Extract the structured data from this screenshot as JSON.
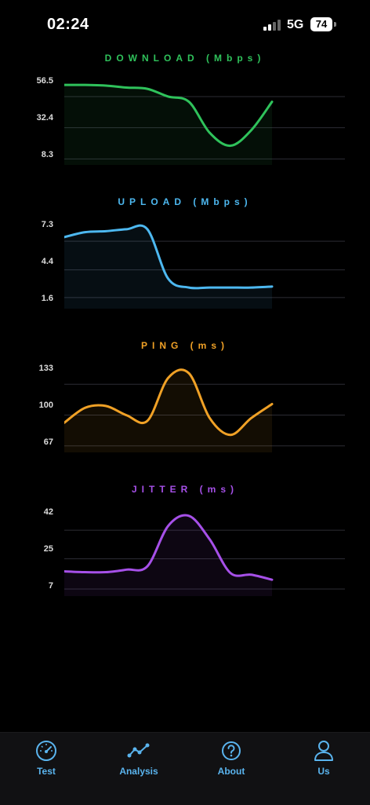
{
  "status": {
    "time": "02:24",
    "network": "5G",
    "battery": "74"
  },
  "charts": [
    {
      "title": "DOWNLOAD (Mbps)",
      "color": "#2fc25b",
      "ticks": [
        "56.5",
        "32.4",
        "8.3"
      ]
    },
    {
      "title": "UPLOAD (Mbps)",
      "color": "#4db8f0",
      "ticks": [
        "7.3",
        "4.4",
        "1.6"
      ]
    },
    {
      "title": "PING (ms)",
      "color": "#f0a126",
      "ticks": [
        "133",
        "100",
        "67"
      ]
    },
    {
      "title": "JITTER (ms)",
      "color": "#a650e8",
      "ticks": [
        "42",
        "25",
        "7"
      ]
    }
  ],
  "chart_data": [
    {
      "type": "line",
      "title": "DOWNLOAD (Mbps)",
      "x": [
        0,
        1,
        2,
        3,
        4,
        5,
        6,
        7,
        8,
        9,
        10
      ],
      "values": [
        57,
        57,
        56.5,
        55,
        54,
        48,
        44,
        20,
        10,
        22,
        44
      ],
      "ylim": [
        0,
        65
      ],
      "ticks": [
        56.5,
        32.4,
        8.3
      ]
    },
    {
      "type": "line",
      "title": "UPLOAD (Mbps)",
      "x": [
        0,
        1,
        2,
        3,
        4,
        5,
        6,
        7,
        8,
        9,
        10
      ],
      "values": [
        6.6,
        7.1,
        7.2,
        7.4,
        7.4,
        2.4,
        1.5,
        1.5,
        1.5,
        1.5,
        1.6
      ],
      "ylim": [
        0,
        8.5
      ],
      "ticks": [
        7.3,
        4.4,
        1.6
      ]
    },
    {
      "type": "line",
      "title": "PING (ms)",
      "x": [
        0,
        1,
        2,
        3,
        4,
        5,
        6,
        7,
        8,
        9,
        10
      ],
      "values": [
        80,
        96,
        98,
        88,
        82,
        128,
        133,
        85,
        67,
        85,
        100
      ],
      "ylim": [
        55,
        145
      ],
      "ticks": [
        133,
        100,
        67
      ]
    },
    {
      "type": "line",
      "title": "JITTER (ms)",
      "x": [
        0,
        1,
        2,
        3,
        4,
        5,
        6,
        7,
        8,
        9,
        10
      ],
      "values": [
        11,
        10.5,
        10.5,
        12,
        14,
        38,
        44,
        30,
        10,
        9,
        6
      ],
      "ylim": [
        0,
        50
      ],
      "ticks": [
        42,
        25,
        7
      ]
    }
  ],
  "tabs": [
    {
      "label": "Test",
      "icon": "speedometer-icon"
    },
    {
      "label": "Analysis",
      "icon": "line-chart-icon"
    },
    {
      "label": "About",
      "icon": "question-circle-icon"
    },
    {
      "label": "Us",
      "icon": "person-icon"
    }
  ]
}
